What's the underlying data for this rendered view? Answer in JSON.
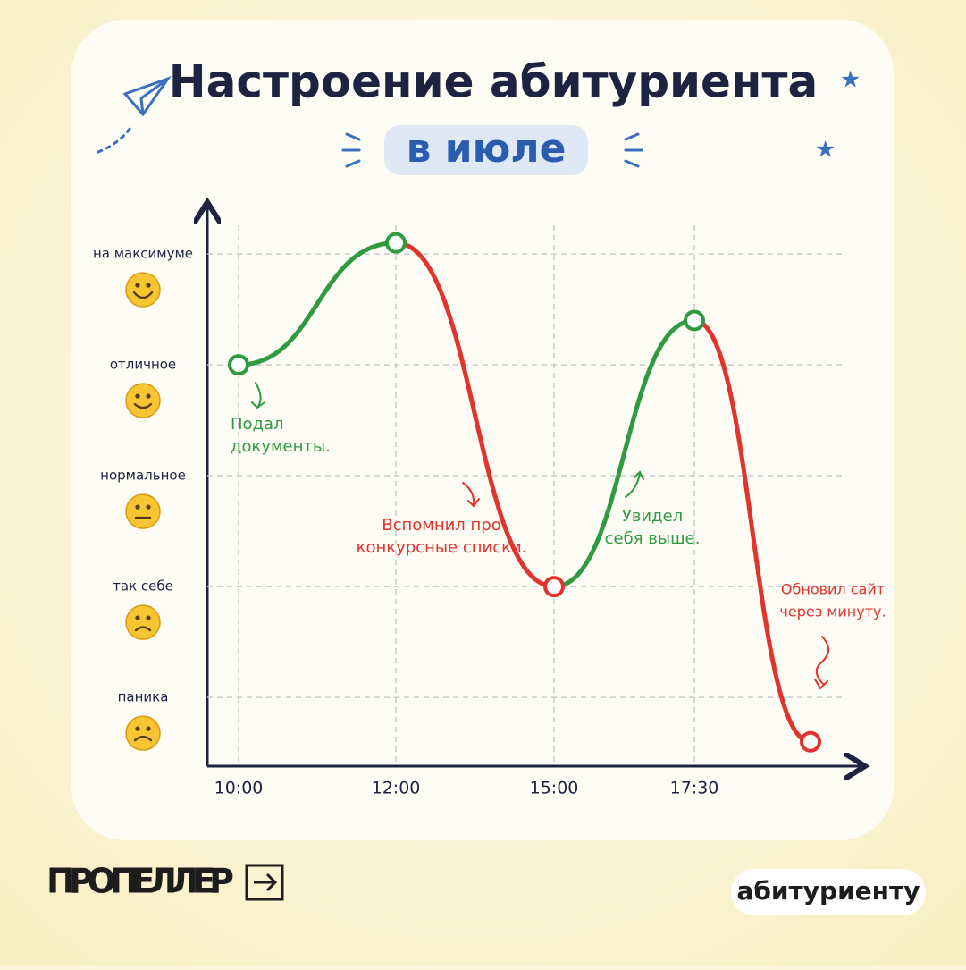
{
  "chart_data": {
    "type": "line",
    "title": "Настроение абитуриента",
    "subtitle": "в июле",
    "categories": [
      "10:00",
      "12:00",
      "15:00",
      "17:30",
      null
    ],
    "values": [
      4,
      5.1,
      2,
      4.4,
      0.6
    ],
    "rise_color": "#2f9a3f",
    "fall_color": "#e0342c",
    "marker_colors": [
      "#2f9a3f",
      "#2f9a3f",
      "#e0342c",
      "#2f9a3f",
      "#e0342c"
    ],
    "ylim": [
      0.38,
      5.42
    ],
    "yticks": [
      {
        "value": 1,
        "label": "паника"
      },
      {
        "value": 2,
        "label": "так себе"
      },
      {
        "value": 3,
        "label": "нормальное"
      },
      {
        "value": 4,
        "label": "отличное"
      },
      {
        "value": 5,
        "label": "на максимуме"
      }
    ],
    "grid": true,
    "annotations": [
      [
        "Подал",
        "документы."
      ],
      [
        "Вспомнил про",
        "конкурсные списки."
      ],
      [
        "Увидел",
        "себя выше."
      ],
      [
        "Обновил сайт",
        "через минуту."
      ]
    ]
  },
  "footer": {
    "brand": "ПРОПЕЛЛЕР",
    "tag": "абитуриенту"
  }
}
